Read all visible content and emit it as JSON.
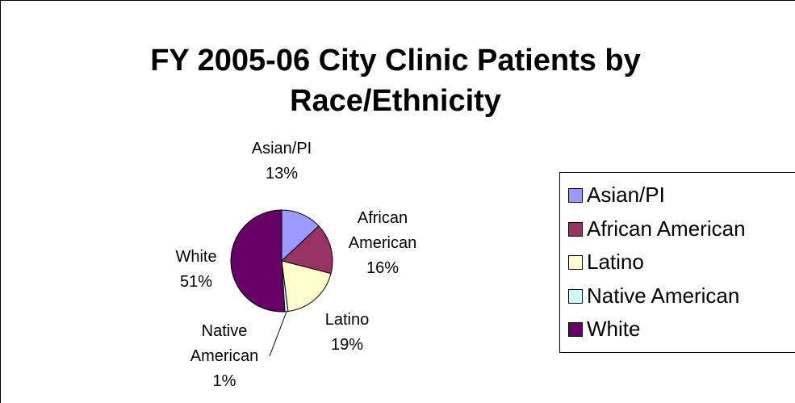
{
  "chart_data": {
    "type": "pie",
    "title": "FY 2005-06 City Clinic Patients by Race/Ethnicity",
    "categories": [
      "Asian/PI",
      "African American",
      "Latino",
      "Native American",
      "White"
    ],
    "values": [
      13,
      16,
      19,
      1,
      51
    ],
    "value_labels": [
      "13%",
      "16%",
      "19%",
      "1%",
      "51%"
    ],
    "colors": [
      "#9999ff",
      "#993366",
      "#ffffcc",
      "#ccffff",
      "#660066"
    ],
    "legend": "right"
  }
}
